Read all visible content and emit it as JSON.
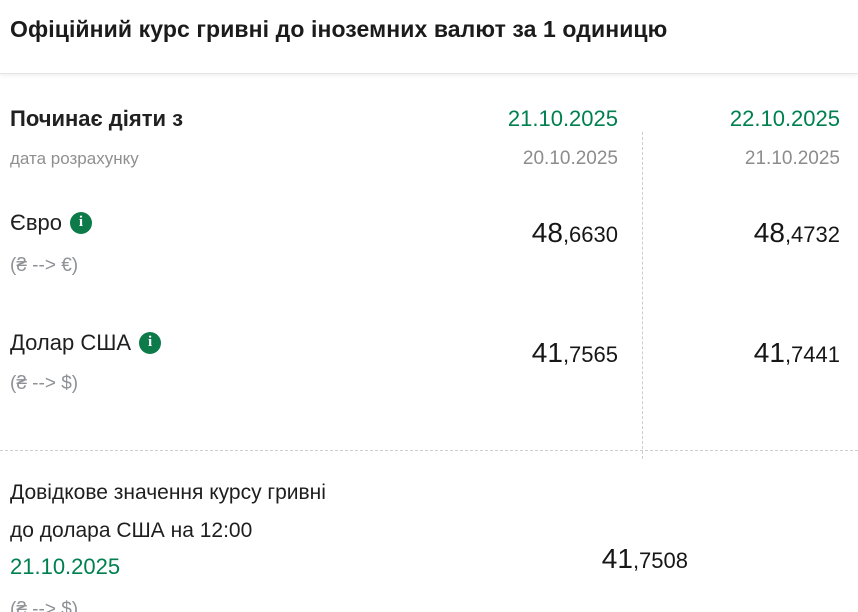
{
  "header": {
    "title": "Офіційний курс гривні до іноземних валют за 1 одиницю"
  },
  "table": {
    "effective_label": "Починає діяти з",
    "calc_date_label": "дата розрахунку",
    "columns": [
      {
        "effective_date": "21.10.2025",
        "calculation_date": "20.10.2025"
      },
      {
        "effective_date": "22.10.2025",
        "calculation_date": "21.10.2025"
      }
    ],
    "rows": [
      {
        "name": "Євро",
        "pair": "(₴ --> €)",
        "values": [
          {
            "int": "48",
            "frac": ",6630"
          },
          {
            "int": "48",
            "frac": ",4732"
          }
        ]
      },
      {
        "name": "Долар США",
        "pair": "(₴ --> $)",
        "values": [
          {
            "int": "41",
            "frac": ",7565"
          },
          {
            "int": "41",
            "frac": ",7441"
          }
        ]
      }
    ]
  },
  "reference": {
    "label_line1": "Довідкове значення курсу гривні",
    "label_line2": "до долара США на 12:00",
    "date": "21.10.2025",
    "pair": "(₴ --> $)",
    "value": {
      "int": "41",
      "frac": ",7508"
    }
  },
  "icons": {
    "info": "i"
  },
  "colors": {
    "accent_green": "#00804F",
    "info_icon_green": "#0C7B49",
    "text_dark": "#1D1D1D",
    "text_gray": "#8C8C8C",
    "divider_gray": "#CDCDCD"
  }
}
